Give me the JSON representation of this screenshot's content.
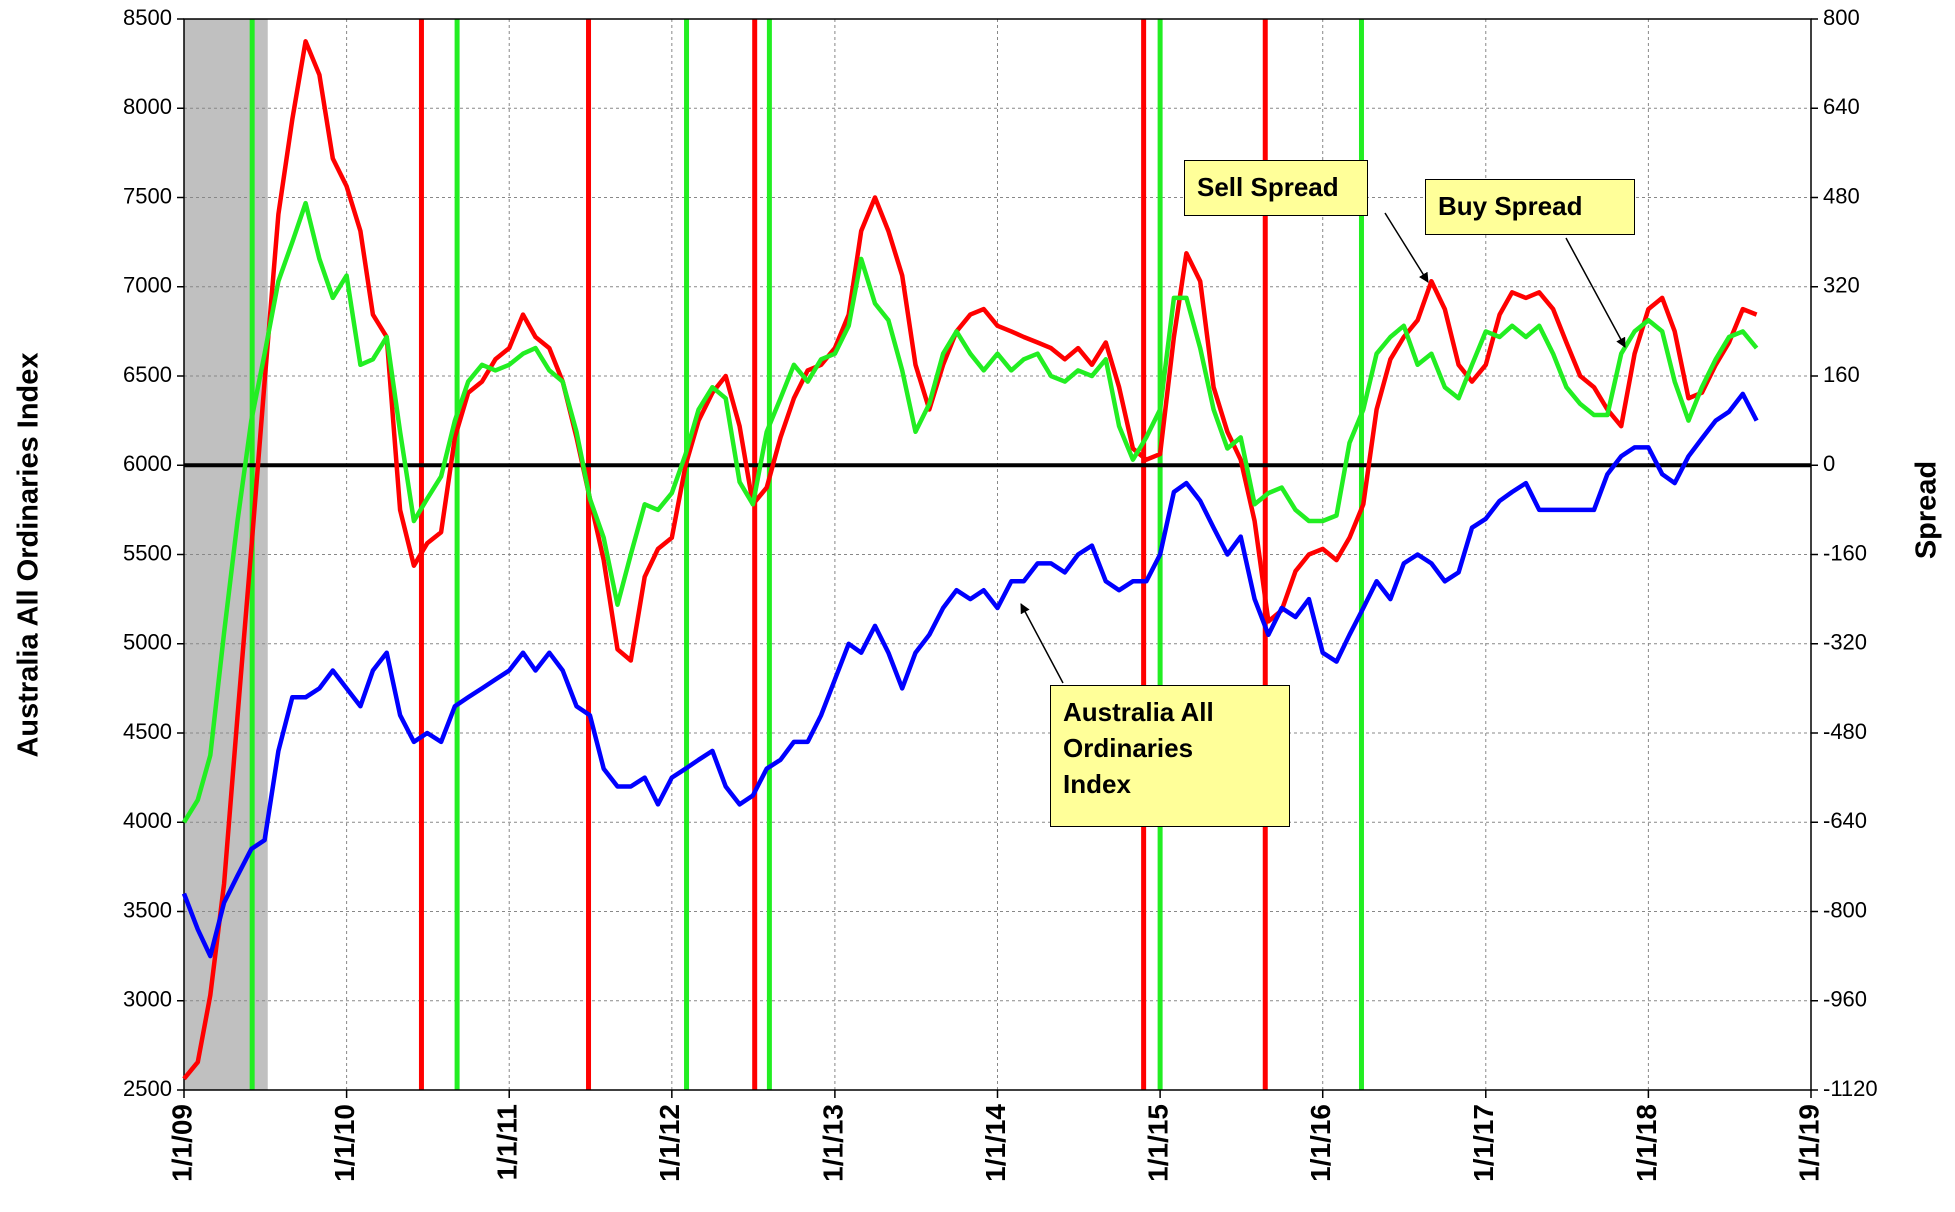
{
  "chart_data": {
    "type": "line",
    "ylabel": "Australia All Ordinaries Index",
    "y2label": "Spread",
    "xlim": [
      "1/1/09",
      "1/1/19"
    ],
    "xticks": [
      "1/1/09",
      "1/1/10",
      "1/1/11",
      "1/1/12",
      "1/1/13",
      "1/1/14",
      "1/1/15",
      "1/1/16",
      "1/1/17",
      "1/1/18",
      "1/1/19"
    ],
    "ylim": [
      2500,
      8500
    ],
    "yticks": [
      2500,
      3000,
      3500,
      4000,
      4500,
      5000,
      5500,
      6000,
      6500,
      7000,
      7500,
      8000,
      8500
    ],
    "y2lim": [
      -1120,
      800
    ],
    "y2ticks": [
      -1120,
      -960,
      -800,
      -640,
      -480,
      -320,
      -160,
      0,
      160,
      320,
      480,
      640,
      800
    ],
    "y2_reference": 0,
    "grid": true,
    "shaded_range": [
      "1/1/09",
      "7/8/09"
    ],
    "sell_signals": [
      "6/18/10",
      "6/28/11",
      "7/5/12",
      "11/25/14",
      "8/25/15"
    ],
    "buy_signals": [
      "6/3/09",
      "9/6/10",
      "2/3/12",
      "8/7/12",
      "1/1/15",
      "3/28/16"
    ],
    "x": [
      "1/1/09",
      "2/1/09",
      "3/1/09",
      "4/1/09",
      "5/1/09",
      "6/1/09",
      "7/1/09",
      "8/1/09",
      "9/1/09",
      "10/1/09",
      "11/1/09",
      "12/1/09",
      "1/1/10",
      "2/1/10",
      "3/1/10",
      "4/1/10",
      "5/1/10",
      "6/1/10",
      "7/1/10",
      "8/1/10",
      "9/1/10",
      "10/1/10",
      "11/1/10",
      "12/1/10",
      "1/1/11",
      "2/1/11",
      "3/1/11",
      "4/1/11",
      "5/1/11",
      "6/1/11",
      "7/1/11",
      "8/1/11",
      "9/1/11",
      "10/1/11",
      "11/1/11",
      "12/1/11",
      "1/1/12",
      "2/1/12",
      "3/1/12",
      "4/1/12",
      "5/1/12",
      "6/1/12",
      "7/1/12",
      "8/1/12",
      "9/1/12",
      "10/1/12",
      "11/1/12",
      "12/1/12",
      "1/1/13",
      "2/1/13",
      "3/1/13",
      "4/1/13",
      "5/1/13",
      "6/1/13",
      "7/1/13",
      "8/1/13",
      "9/1/13",
      "10/1/13",
      "11/1/13",
      "12/1/13",
      "1/1/14",
      "2/1/14",
      "3/1/14",
      "4/1/14",
      "5/1/14",
      "6/1/14",
      "7/1/14",
      "8/1/14",
      "9/1/14",
      "10/1/14",
      "11/1/14",
      "12/1/14",
      "1/1/15",
      "2/1/15",
      "3/1/15",
      "4/1/15",
      "5/1/15",
      "6/1/15",
      "7/1/15",
      "8/1/15",
      "9/1/15",
      "10/1/15",
      "11/1/15",
      "12/1/15",
      "1/1/16",
      "2/1/16",
      "3/1/16",
      "4/1/16",
      "5/1/16",
      "6/1/16",
      "7/1/16",
      "8/1/16",
      "9/1/16",
      "10/1/16",
      "11/1/16",
      "12/1/16",
      "1/1/17",
      "2/1/17",
      "3/1/17",
      "4/1/17",
      "5/1/17",
      "6/1/17",
      "7/1/17",
      "8/1/17",
      "9/1/17",
      "10/1/17",
      "11/1/17",
      "12/1/17",
      "1/1/18",
      "2/1/18",
      "3/1/18",
      "4/1/18",
      "5/1/18",
      "6/1/18",
      "7/1/18",
      "8/1/18",
      "9/1/18"
    ],
    "series": [
      {
        "name": "Australia All Ordinaries Index",
        "color": "#0000ff",
        "values": [
          3600,
          3400,
          3250,
          3550,
          3700,
          3850,
          3900,
          4400,
          4700,
          4700,
          4750,
          4850,
          4750,
          4650,
          4850,
          4950,
          4600,
          4450,
          4500,
          4450,
          4650,
          4700,
          4750,
          4800,
          4850,
          4950,
          4850,
          4950,
          4850,
          4650,
          4600,
          4300,
          4200,
          4200,
          4250,
          4100,
          4250,
          4300,
          4350,
          4400,
          4200,
          4100,
          4150,
          4300,
          4350,
          4450,
          4450,
          4600,
          4800,
          5000,
          4950,
          5100,
          4950,
          4750,
          4950,
          5050,
          5200,
          5300,
          5250,
          5300,
          5200,
          5350,
          5350,
          5450,
          5450,
          5400,
          5500,
          5550,
          5350,
          5300,
          5350,
          5350,
          5500,
          5850,
          5900,
          5800,
          5650,
          5500,
          5600,
          5250,
          5050,
          5200,
          5150,
          5250,
          4950,
          4900,
          5050,
          5200,
          5350,
          5250,
          5450,
          5500,
          5450,
          5350,
          5400,
          5650,
          5700,
          5800,
          5850,
          5900,
          5750,
          5750,
          5750,
          5750,
          5750,
          5950,
          6050,
          6100,
          6100,
          5950,
          5900,
          6050,
          6150,
          6250,
          6300,
          6400,
          6250
        ]
      },
      {
        "name": "Sell Spread",
        "color": "#ff0000",
        "axis": "y2",
        "values": [
          -1100,
          -1070,
          -950,
          -750,
          -450,
          -150,
          150,
          450,
          620,
          760,
          700,
          550,
          500,
          420,
          270,
          230,
          -80,
          -180,
          -140,
          -120,
          50,
          130,
          150,
          190,
          210,
          270,
          230,
          210,
          150,
          50,
          -60,
          -170,
          -330,
          -350,
          -200,
          -150,
          -130,
          0,
          80,
          130,
          160,
          70,
          -70,
          -40,
          50,
          120,
          170,
          180,
          210,
          270,
          420,
          480,
          420,
          340,
          180,
          100,
          180,
          240,
          270,
          280,
          250,
          240,
          230,
          220,
          210,
          190,
          210,
          180,
          220,
          140,
          30,
          10,
          20,
          230,
          380,
          330,
          140,
          60,
          10,
          -100,
          -280,
          -260,
          -190,
          -160,
          -150,
          -170,
          -130,
          -70,
          100,
          190,
          230,
          260,
          330,
          280,
          180,
          150,
          180,
          270,
          310,
          300,
          310,
          280,
          220,
          160,
          140,
          100,
          70,
          200,
          280,
          300,
          240,
          120,
          130,
          180,
          220,
          280,
          270
        ]
      },
      {
        "name": "Buy Spread",
        "color": "#22ee22",
        "axis": "y2",
        "values": [
          -640,
          -600,
          -520,
          -300,
          -100,
          80,
          200,
          330,
          400,
          470,
          370,
          300,
          340,
          180,
          190,
          230,
          60,
          -100,
          -60,
          -20,
          80,
          150,
          180,
          170,
          180,
          200,
          210,
          170,
          150,
          60,
          -60,
          -130,
          -250,
          -160,
          -70,
          -80,
          -50,
          20,
          100,
          140,
          120,
          -30,
          -70,
          60,
          120,
          180,
          150,
          190,
          200,
          250,
          370,
          290,
          260,
          170,
          60,
          110,
          200,
          240,
          200,
          170,
          200,
          170,
          190,
          200,
          160,
          150,
          170,
          160,
          190,
          70,
          10,
          50,
          100,
          300,
          300,
          210,
          100,
          30,
          50,
          -70,
          -50,
          -40,
          -80,
          -100,
          -100,
          -90,
          40,
          100,
          200,
          230,
          250,
          180,
          200,
          140,
          120,
          180,
          240,
          230,
          250,
          230,
          250,
          200,
          140,
          110,
          90,
          90,
          200,
          240,
          260,
          240,
          150,
          80,
          140,
          190,
          230,
          240,
          210
        ]
      }
    ]
  }
}
